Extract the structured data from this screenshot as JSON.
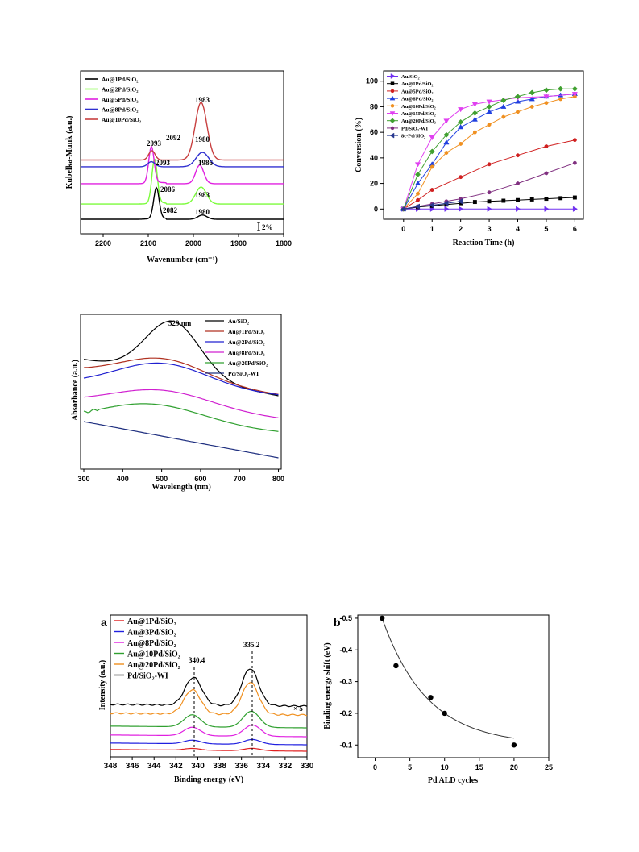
{
  "chart_data": [
    {
      "id": "ir",
      "type": "line",
      "xlabel": "Wavenumber (cm⁻¹)",
      "ylabel": "Kubelka-Munk (a.u.)",
      "xlim": [
        2250,
        1800
      ],
      "xticks": [
        2200,
        2100,
        2000,
        1900,
        1800
      ],
      "scale_bar_label": "2%",
      "series": [
        {
          "name": "Au@1Pd/SiO₂",
          "color": "#000000",
          "offset": 0,
          "peaks": [
            {
              "x": 2082,
              "h": 3.6,
              "w": 6
            },
            {
              "x": 1980,
              "h": 0.5,
              "w": 10
            }
          ]
        },
        {
          "name": "Au@2Pd/SiO₂",
          "color": "#7CFC3C",
          "offset": 1.8,
          "peaks": [
            {
              "x": 2086,
              "h": 5.2,
              "w": 6
            },
            {
              "x": 1983,
              "h": 2.0,
              "w": 12
            }
          ]
        },
        {
          "name": "Au@5Pd/SiO₂",
          "color": "#E020E0",
          "offset": 4.2,
          "peaks": [
            {
              "x": 2093,
              "h": 4.3,
              "w": 6
            },
            {
              "x": 1986,
              "h": 2.2,
              "w": 9
            }
          ]
        },
        {
          "name": "Au@8Pd/SiO₂",
          "color": "#3030D0",
          "offset": 6.2,
          "peaks": [
            {
              "x": 2093,
              "h": 0.6,
              "w": 8
            },
            {
              "x": 1980,
              "h": 1.7,
              "w": 14
            }
          ]
        },
        {
          "name": "Au@10Pd/SiO₂",
          "color": "#C84040",
          "offset": 7.0,
          "peaks": [
            {
              "x": 2092,
              "h": 1.1,
              "w": 7
            },
            {
              "x": 1983,
              "h": 6.8,
              "w": 13
            }
          ]
        }
      ],
      "annotations": [
        "2092",
        "1983",
        "2093",
        "1980",
        "2093",
        "1986",
        "2086",
        "1983",
        "2082",
        "1980"
      ]
    },
    {
      "id": "conv",
      "type": "line",
      "xlabel": "Reaction Time (h)",
      "ylabel": "Conversion (%)",
      "xlim": [
        -0.7,
        6.3
      ],
      "ylim": [
        -8,
        108
      ],
      "xticks": [
        0,
        1,
        2,
        3,
        4,
        5,
        6
      ],
      "yticks": [
        0,
        20,
        40,
        60,
        80,
        100
      ],
      "series": [
        {
          "name": "Au/SiO₂",
          "color": "#7030F0",
          "marker": "triangle-right",
          "x": [
            0,
            0.5,
            1,
            1.5,
            2,
            3,
            4,
            5,
            6
          ],
          "values": [
            0,
            0,
            0,
            0,
            0,
            0,
            0,
            0,
            0
          ]
        },
        {
          "name": "Au@1Pd/SiO₂",
          "color": "#000000",
          "marker": "square",
          "x": [
            0,
            0.5,
            1,
            1.5,
            2,
            2.5,
            3,
            3.5,
            4,
            4.5,
            5,
            5.5,
            6
          ],
          "values": [
            0,
            1.5,
            2.5,
            3.5,
            4.5,
            5.5,
            6,
            6.5,
            7,
            7.5,
            8,
            8.5,
            9
          ]
        },
        {
          "name": "Au@5Pd/SiO₂",
          "color": "#D02020",
          "marker": "circle",
          "x": [
            0,
            0.5,
            1,
            2,
            3,
            4,
            5,
            6
          ],
          "values": [
            0,
            7,
            15,
            25,
            35,
            42,
            49,
            54
          ]
        },
        {
          "name": "Au@8Pd/SiO₂",
          "color": "#2040E0",
          "marker": "triangle-up",
          "x": [
            0,
            0.5,
            1,
            1.5,
            2,
            2.5,
            3,
            3.5,
            4,
            4.5,
            5,
            5.5,
            6
          ],
          "values": [
            0,
            20,
            35,
            52,
            64,
            70,
            76,
            80,
            84,
            86,
            88,
            89,
            90
          ]
        },
        {
          "name": "Au@10Pd/SiO₂",
          "color": "#F09020",
          "marker": "circle",
          "x": [
            0,
            0.5,
            1,
            1.5,
            2,
            2.5,
            3,
            3.5,
            4,
            4.5,
            5,
            5.5,
            6
          ],
          "values": [
            0,
            12,
            33,
            44,
            51,
            60,
            66,
            72,
            76,
            80,
            83,
            86,
            88
          ]
        },
        {
          "name": "Au@15Pd/SiO₂",
          "color": "#E040F0",
          "marker": "triangle-down",
          "x": [
            0,
            0.5,
            1,
            1.5,
            2,
            2.5,
            3,
            4,
            5,
            6
          ],
          "values": [
            0,
            35,
            56,
            69,
            78,
            82,
            84,
            87,
            88,
            90
          ]
        },
        {
          "name": "Au@20Pd/SiO₂",
          "color": "#40A030",
          "marker": "diamond",
          "x": [
            0,
            0.5,
            1,
            1.5,
            2,
            2.5,
            3,
            3.5,
            4,
            4.5,
            5,
            5.5,
            6
          ],
          "values": [
            0,
            27,
            45,
            58,
            68,
            75,
            80,
            85,
            88,
            91,
            93,
            94,
            94
          ]
        },
        {
          "name": "Pd/SiO₂-WI",
          "color": "#803080",
          "marker": "circle",
          "x": [
            0,
            0.5,
            1,
            1.5,
            2,
            3,
            4,
            5,
            6
          ],
          "values": [
            0,
            2,
            4,
            6,
            8,
            13,
            20,
            28,
            36
          ]
        },
        {
          "name": "8c-Pd/SiO₂",
          "color": "#283890",
          "marker": "triangle-left",
          "x": [
            0,
            0.5,
            1,
            1.5,
            2
          ],
          "values": [
            0,
            2,
            3,
            4.5,
            6
          ]
        }
      ]
    },
    {
      "id": "uv",
      "type": "line",
      "xlabel": "Wavelength (nm)",
      "ylabel": "Absorbance (a.u.)",
      "xlim": [
        300,
        800
      ],
      "xticks": [
        300,
        400,
        500,
        600,
        700,
        800
      ],
      "peak_label": "529 nm",
      "series": [
        {
          "name": "Au/SiO₂",
          "color": "#000000",
          "base": 0.62,
          "amp": 0.34,
          "center": 529,
          "width": 70,
          "slope": -0.5
        },
        {
          "name": "Au@1Pd/SiO₂",
          "color": "#B03020",
          "base": 0.6,
          "amp": 0.14,
          "center": 505,
          "width": 110,
          "slope": -0.55
        },
        {
          "name": "Au@2Pd/SiO₂",
          "color": "#2020D0",
          "base": 0.45,
          "amp": 0.16,
          "center": 500,
          "width": 120,
          "slope": -0.5
        },
        {
          "name": "Au@8Pd/SiO₂",
          "color": "#D020D0",
          "base": 0.26,
          "amp": 0.12,
          "center": 500,
          "width": 130,
          "slope": -0.45
        },
        {
          "name": "Au@20Pd/SiO₂",
          "color": "#30A030",
          "base": 0.1,
          "amp": 0.14,
          "center": 470,
          "width": 140,
          "slope": -0.45
        },
        {
          "name": "Pd/SiO₂-WI",
          "color": "#203080",
          "base": 0.0,
          "amp": 0.0,
          "center": 500,
          "width": 100,
          "slope": -0.9
        }
      ]
    },
    {
      "id": "xps",
      "type": "line",
      "xlabel": "Binding energy (eV)",
      "ylabel": "Intensity (a.u.)",
      "xlim": [
        348,
        330
      ],
      "xticks": [
        348,
        346,
        344,
        342,
        340,
        338,
        336,
        334,
        332,
        330
      ],
      "panel_label": "a",
      "peak_labels": [
        "340.4",
        "335.2"
      ],
      "scale_label": "× 5",
      "series": [
        {
          "name": "Au@1Pd/SiO₂",
          "color": "#E02020",
          "offset": 0,
          "amp": 0.25,
          "p1": 340.5,
          "p2": 335.0
        },
        {
          "name": "Au@3Pd/SiO₂",
          "color": "#2020E0",
          "offset": 0.25,
          "amp": 0.5,
          "p1": 340.5,
          "p2": 335.0
        },
        {
          "name": "Au@8Pd/SiO₂",
          "color": "#E020E0",
          "offset": 0.6,
          "amp": 1.1,
          "p1": 340.5,
          "p2": 335.0
        },
        {
          "name": "Au@10Pd/SiO₂",
          "color": "#30A030",
          "offset": 1.2,
          "amp": 1.6,
          "p1": 340.5,
          "p2": 335.1
        },
        {
          "name": "Au@20Pd/SiO₂",
          "color": "#F09020",
          "offset": 2.1,
          "amp": 3.2,
          "p1": 340.5,
          "p2": 335.2
        },
        {
          "name": "Pd/SiO₂-WI",
          "color": "#000000",
          "offset": 2.6,
          "amp": 3.4,
          "p1": 340.4,
          "p2": 335.2
        }
      ]
    },
    {
      "id": "shift",
      "type": "scatter",
      "xlabel": "Pd ALD cycles",
      "ylabel": "Binding energy shift (eV)",
      "xlim": [
        -2.5,
        25
      ],
      "ylim": [
        -0.51,
        -0.06
      ],
      "xticks": [
        0,
        5,
        10,
        15,
        20,
        25
      ],
      "yticks": [
        -0.5,
        -0.4,
        -0.3,
        -0.2,
        -0.1
      ],
      "ytick_labels": [
        "-0.5",
        "-0.4",
        "-0.3",
        "-0.2",
        "-0.1"
      ],
      "panel_label": "b",
      "x": [
        1,
        3,
        8,
        10,
        20
      ],
      "values": [
        -0.5,
        -0.35,
        -0.25,
        -0.2,
        -0.1
      ]
    }
  ]
}
